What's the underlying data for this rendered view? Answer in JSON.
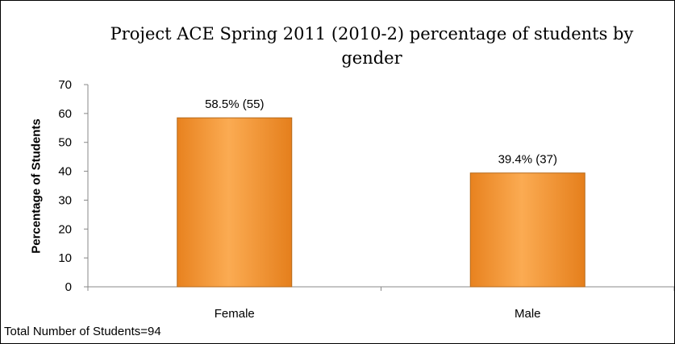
{
  "chart_data": {
    "type": "bar",
    "title": "Project ACE Spring 2011 (2010-2)  percentage of students by gender",
    "xlabel": "",
    "ylabel": "Percentage of Students",
    "categories": [
      "Female",
      "Male"
    ],
    "values": [
      58.5,
      39.4
    ],
    "data_labels": [
      "58.5% (55)",
      "39.4% (37)"
    ],
    "ylim": [
      0,
      70
    ],
    "yticks": [
      0,
      10,
      20,
      30,
      40,
      50,
      60,
      70
    ],
    "grid": false,
    "legend": "none",
    "bar_color": "#f59a3a",
    "bar_edge_color": "#b56a1c",
    "footnote": "Total Number of Students=94"
  }
}
